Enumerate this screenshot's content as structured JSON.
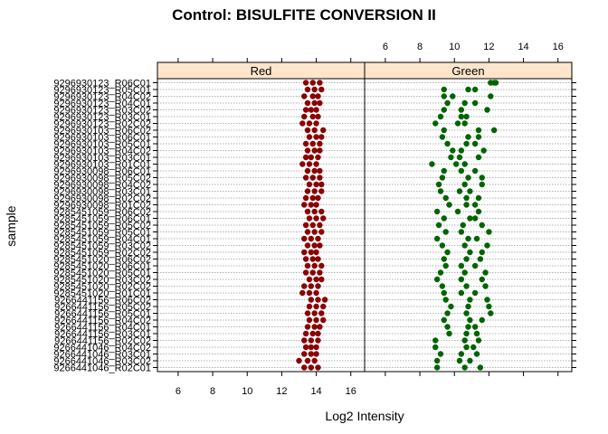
{
  "chart_data": {
    "type": "scatter",
    "title": "Control: BISULFITE CONVERSION II",
    "xlabel": "Log2 Intensity",
    "ylabel": "sample",
    "xlim": [
      4.8,
      16.8
    ],
    "xticks": [
      6,
      8,
      10,
      12,
      14,
      16
    ],
    "panels": [
      "Red",
      "Green"
    ],
    "samples": [
      "9296930123_R06C01",
      "9296930123_R05C01",
      "9296930123_R04C02",
      "9296930123_R04C01",
      "9296930123_R03C02",
      "9296930123_R03C01",
      "9296930123_R02C02",
      "9296930103_R06C02",
      "9296930103_R06C01",
      "9296930103_R05C01",
      "9296930103_R04C02",
      "9296930103_R03C01",
      "9296930103_R01C01",
      "9296930098_R06C01",
      "9296930098_R05C02",
      "9296930098_R04C02",
      "9296930098_R03C01",
      "9296930098_R02C02",
      "9296930098_R01C02",
      "9285451059_R06C02",
      "9285451059_R06C01",
      "9285451059_R05C02",
      "9285451059_R05C01",
      "9285451059_R04C01",
      "9285451059_R03C02",
      "9285451059_R02C02",
      "9285451020_R06C02",
      "9285451020_R06C01",
      "9285451020_R05C01",
      "9285451020_R03C02",
      "9285451020_R02C02",
      "9285451020_R01C01",
      "9266441156_R06C02",
      "9266441156_R05C02",
      "9266441156_R05C01",
      "9266441156_R04C02",
      "9266441156_R04C01",
      "9266441156_R03C01",
      "9266441156_R02C02",
      "9266441046_R04C02",
      "9266441046_R03C01",
      "9266441046_R03C02",
      "9266441046_R02C01"
    ],
    "series": [
      {
        "name": "Red",
        "color": "#8b0000",
        "values": [
          [
            13.4,
            13.8,
            14.2
          ],
          [
            13.5,
            13.9,
            14.3
          ],
          [
            13.3,
            13.8,
            14.1
          ],
          [
            13.5,
            13.9,
            14.2
          ],
          [
            13.4,
            13.7,
            14.0
          ],
          [
            13.3,
            13.8,
            14.1
          ],
          [
            13.2,
            13.6,
            14.0
          ],
          [
            13.5,
            13.9,
            14.4
          ],
          [
            13.6,
            14.0,
            14.3
          ],
          [
            13.4,
            13.8,
            14.2
          ],
          [
            13.5,
            13.9,
            14.2
          ],
          [
            13.4,
            13.7,
            14.1
          ],
          [
            13.2,
            13.6,
            14.0
          ],
          [
            13.5,
            13.9,
            14.2
          ],
          [
            13.4,
            13.8,
            14.2
          ],
          [
            13.6,
            14.0,
            14.3
          ],
          [
            13.5,
            13.9,
            14.3
          ],
          [
            13.4,
            13.8,
            14.1
          ],
          [
            13.3,
            13.7,
            14.0
          ],
          [
            13.5,
            13.9,
            14.3
          ],
          [
            13.6,
            14.0,
            14.4
          ],
          [
            13.4,
            13.8,
            14.2
          ],
          [
            13.5,
            13.9,
            14.3
          ],
          [
            13.3,
            13.7,
            14.1
          ],
          [
            13.5,
            13.9,
            14.2
          ],
          [
            13.3,
            13.7,
            14.0
          ],
          [
            13.4,
            13.8,
            14.1
          ],
          [
            13.5,
            13.9,
            14.3
          ],
          [
            13.4,
            13.8,
            14.2
          ],
          [
            13.6,
            14.0,
            14.3
          ],
          [
            13.3,
            13.7,
            14.1
          ],
          [
            13.2,
            13.6,
            14.0
          ],
          [
            13.7,
            14.1,
            14.5
          ],
          [
            13.6,
            14.0,
            14.4
          ],
          [
            13.5,
            13.9,
            14.3
          ],
          [
            13.6,
            14.0,
            14.4
          ],
          [
            13.5,
            13.9,
            14.2
          ],
          [
            13.4,
            13.8,
            14.1
          ],
          [
            13.3,
            13.7,
            14.1
          ],
          [
            13.4,
            13.7,
            14.0
          ],
          [
            13.3,
            13.7,
            14.0
          ],
          [
            13.0,
            13.5,
            13.9
          ],
          [
            13.3,
            13.7,
            14.1
          ]
        ]
      },
      {
        "name": "Green",
        "color": "#006400",
        "values": [
          [
            12.1,
            12.3,
            12.4
          ],
          [
            9.4,
            10.8,
            11.2
          ],
          [
            9.9,
            9.4,
            12.1
          ],
          [
            9.6,
            10.6,
            11.2
          ],
          [
            9.4,
            10.4,
            11.9
          ],
          [
            9.2,
            10.7,
            10.4
          ],
          [
            8.9,
            10.2,
            10.6
          ],
          [
            9.4,
            11.4,
            12.3
          ],
          [
            9.3,
            10.8,
            11.4
          ],
          [
            9.6,
            10.7,
            11.2
          ],
          [
            9.9,
            10.4,
            11.7
          ],
          [
            9.8,
            10.3,
            11.4
          ],
          [
            8.7,
            10.6,
            10.1
          ],
          [
            9.4,
            10.4,
            11.2
          ],
          [
            9.3,
            10.8,
            11.6
          ],
          [
            9.1,
            10.6,
            11.6
          ],
          [
            9.2,
            10.3,
            10.9
          ],
          [
            9.5,
            10.7,
            11.4
          ],
          [
            9.7,
            10.7,
            11.2
          ],
          [
            9.0,
            10.2,
            11.4
          ],
          [
            9.4,
            10.9,
            11.2
          ],
          [
            9.1,
            10.5,
            11.6
          ],
          [
            9.5,
            10.4,
            12.0
          ],
          [
            9.0,
            10.8,
            11.3
          ],
          [
            9.3,
            10.6,
            11.9
          ],
          [
            9.6,
            10.9,
            11.6
          ],
          [
            9.4,
            10.7,
            11.5
          ],
          [
            9.5,
            10.4,
            11.2
          ],
          [
            9.2,
            10.6,
            11.8
          ],
          [
            9.0,
            10.4,
            11.6
          ],
          [
            9.3,
            10.7,
            11.8
          ],
          [
            9.4,
            10.4,
            11.2
          ],
          [
            9.5,
            10.9,
            11.9
          ],
          [
            9.8,
            10.8,
            12.0
          ],
          [
            9.6,
            10.7,
            12.1
          ],
          [
            9.4,
            10.9,
            11.6
          ],
          [
            9.6,
            10.8,
            11.2
          ],
          [
            9.7,
            10.7,
            11.3
          ],
          [
            8.9,
            10.6,
            11.4
          ],
          [
            8.9,
            10.7,
            11.1
          ],
          [
            9.2,
            10.4,
            11.3
          ],
          [
            9.0,
            10.3,
            10.9
          ],
          [
            9.0,
            10.6,
            11.5
          ]
        ]
      }
    ]
  }
}
